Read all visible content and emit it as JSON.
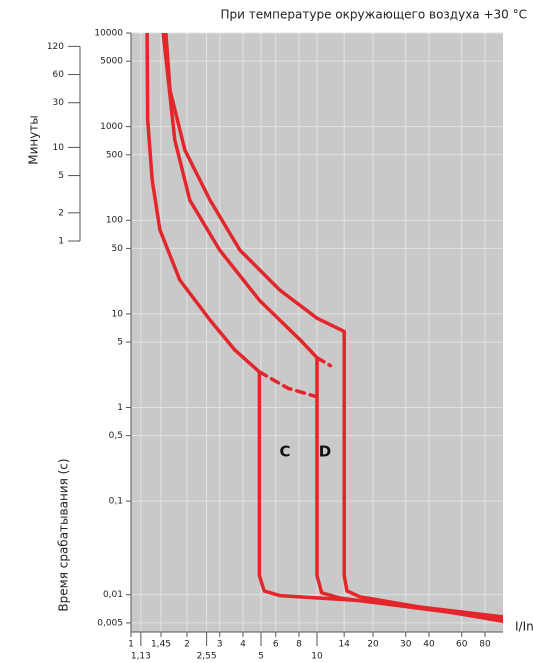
{
  "chart_data": {
    "type": "line",
    "title": "При температуре окружающего воздуха +30 °C",
    "xlabel": "I/In",
    "ylabel": "Время срабатывания (с)",
    "y2label": "Минуты",
    "labels": [
      "C",
      "D"
    ],
    "log_x": true,
    "log_y": true,
    "grid": true,
    "plot_background": "#c9c9c9",
    "xlim": [
      1,
      100
    ],
    "xticks": [
      1,
      {
        "value": 1.13,
        "label": "1,13"
      },
      {
        "value": 1.45,
        "label": "1,45"
      },
      2,
      {
        "value": 2.55,
        "label": "2,55"
      },
      3,
      4,
      5,
      6,
      8,
      10,
      14,
      20,
      30,
      40,
      60,
      80
    ],
    "ylim": [
      0.004,
      10000
    ],
    "yticks": [
      10000,
      5000,
      1000,
      500,
      100,
      50,
      10,
      5,
      1,
      {
        "value": 0.5,
        "label": "0,5"
      },
      {
        "value": 0.1,
        "label": "0,1"
      },
      {
        "value": 0.01,
        "label": "0,01"
      },
      {
        "value": 0.005,
        "label": "0,005"
      }
    ],
    "y2lim": [
      6.667e-05,
      166.6667
    ],
    "y2ticks": [
      120,
      60,
      30,
      10,
      5,
      2,
      1
    ],
    "series": [
      {
        "color": "#e3262b",
        "dashed": false,
        "x": [
          1.22,
          1.23,
          1.3,
          1.43,
          1.83,
          2.66,
          3.62,
          4.9,
          4.9,
          5.2,
          6.3,
          20,
          100
        ],
        "values": [
          10000,
          1175,
          269,
          79,
          23,
          8.6,
          4.1,
          2.4,
          0.016,
          0.011,
          0.0098,
          0.0085,
          0.0058
        ]
      },
      {
        "color": "#e3262b",
        "dashed": true,
        "x": [
          4.9,
          7,
          10
        ],
        "values": [
          2.4,
          1.6,
          1.3
        ]
      },
      {
        "color": "#e3262b",
        "dashed": false,
        "x": [
          1.49,
          1.72,
          2.07,
          3.0,
          4.9,
          8.1,
          10,
          10,
          10.6,
          13.3,
          100
        ],
        "values": [
          10000,
          720,
          164,
          48,
          14,
          5.3,
          3.4,
          0.016,
          0.0105,
          0.0092,
          0.0055
        ]
      },
      {
        "color": "#e3262b",
        "dashed": true,
        "x": [
          10,
          11.8
        ],
        "values": [
          3.4,
          2.8
        ]
      },
      {
        "color": "#e3262b",
        "dashed": false,
        "x": [
          1.54,
          1.62,
          1.95,
          2.66,
          3.85,
          6.3,
          10,
          14,
          14,
          14.5,
          17,
          100
        ],
        "values": [
          10000,
          2460,
          562,
          164,
          48,
          18,
          9,
          6.5,
          0.016,
          0.011,
          0.0095,
          0.0052
        ]
      }
    ]
  }
}
